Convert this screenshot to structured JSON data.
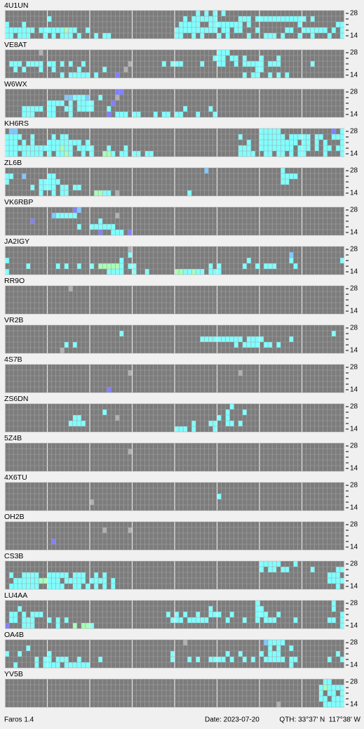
{
  "band_labels": {
    "top": 28,
    "bottom": 14
  },
  "palette": {
    "c": "#80ffff",
    "g": "#a8ffb8",
    "b": "#8080ff",
    "l": "#80c8ff",
    "k": "#b0b0b0"
  },
  "panels": [
    {
      "name": "4U1UN",
      "rows": [
        ".......... .......... .......... .......... .....c.c.c .c........ .......... ..........",
        ".......... c......... .......... .......... ..c.cccccc .....ccc.c cccccccccc c.c.......",
        "c...c..... .......... .......... .......... .ccccc..cc cccccc.c.. .........c ........cc",
        "ccccccc.cc ccccgcc..c .......... .......... cccccccccc .cc.cc...c ......cc.. cccccc.c.c",
        "cc.ccc...c .c.ccc.c.. .c.cc..... .......... cc..c.c... c.c....c.. .ccc.c...c ..c...c..c"
      ]
    },
    {
      "name": "VE8AT",
      "rows": [
        "........k. .......... .......... .......... .......... ccc....... .......... ..........",
        ".......... .......... .......... .......... .........c cc.cc.c... c...c..... ..........",
        ".ccc.cccc. cc.c.c..c. .........k .......c.c cc....c... cc..c.cccc c.ccc..... ..c.......",
        "..c.c...c. .c.....c.. ...c....k. .......... .......... .........c c......... ..........",
        ".......... ...c.ccccc .c....b... .......... .......... ......c.cc ..c.c.c... .........."
      ]
    },
    {
      "name": "W6WX",
      "rows": [
        ".......... .......... ......bb.. .......... .......... .......... .......... ..........",
        ".......... ....llcccl ..c...k... .......... .......... .......... .......... ..........",
        ".......... cccc.c.ccc c....b.... .......... .......... .......... .......... ..........",
        "....ccccc. cc..cc.ccc c...c..... .......... ..c.....c. .......... .......... ..........",
        "....ccc... cc...c.... ....b.ccc. cc...c.cc. cc...c...c .......... .......... .........."
      ]
    },
    {
      "name": "KH6RS",
      "rows": [
        ".ll....... .......... .......... .......... .......... .......... ccccc..... .......b.c",
        "cccc..c... .c.cc..... .......... .......... .......... .....c.... cccccc.ccc cc.cc..ccc",
        "ccc.c.c... cccccccc.c .......... .......... .......... .......c.. ccccccccc. cc.c.c...c",
        "cccccccccc cccgcc.ccc c...c...c. .......... .......... .....ccc.. cccccccc.c cc.c.cc.cc",
        "ccc.ccccc. c.ccgc..c. c..ggc.cc. cc.cc..... .......... .....cccc. .cc.cc.c.c c....c...c"
      ]
    },
    {
      "name": "ZL6B",
      "rows": [
        ".......... .......... .......... .......... .......l.. .......... .....c.... ..........",
        "cc..l..... cc........ .......... .......... .......... .......... .....cccc. ..........",
        "c.......cc ccc....... .......... .......... .......... .......... .....cc... ..........",
        "......c.cc cc.cc.cc.. .......... .......... .......... .......... .......... ..........",
        "........c. .c.cc..... .ggcc.k... .......... ...c...... .......... .......... .........."
      ]
    },
    {
      "name": "VK6RBP",
      "rows": [
        ".......... ......bl.. .......... .......... .......... .......... .......... ..........",
        ".......... .lccccc... ......k... .......... .......... .......... .......... ..........",
        "......b... .......... ..c....... .......... .......... .......... .......... ..........",
        ".......... .......c.. cccccc.... .......... .......... .......... .......... ..........",
        ".......... .......... ..b..ccc.b .......... .......... .......... .......... .........."
      ]
    },
    {
      "name": "JA2IGY",
      "rows": [
        ".......... .......... .........k .......... .......... .......... .......... ..........",
        ".......... .......... .........c .......... .......... .......... .......l.. ..........",
        "c......... .......... .......c.. .......... .......... .......c.. .......c.. .........c",
        ".....c.... ..c.c..c.. c.gggggc.c c......... ........c. c.....c..c .ccc....c. ..........",
        "c......... .......... ....cccc.. c..c...... ggccgcc.cc c......... .......... .........."
      ]
    },
    {
      "name": "RR9O",
      "rows": [
        ".......... .....k.... .......... .......... .......... .......... .......... ..........",
        ".......... .......... .......... .......... .......... .......... .......... ..........",
        ".......... .......... .......... .......... .......... .......... .......... ..........",
        ".......... .......... .......... .......... .......... .......... .......... ..........",
        ".......... .......... .......... .......... .......... .......... .......... .........."
      ]
    },
    {
      "name": "VR2B",
      "rows": [
        ".......... .......... .......... .......... .......... .......... .......... ..........",
        ".......... .......... .......c.. .......... .......... .......... .......... .......c..",
        ".......... .......... .......... .......... ......cccc cccccc.ccc c......c.. ..........",
        ".......... ....c.c... .......... .......... .......... ....c.cccc .cc.c..... ..........",
        ".......... ...k...... .......... .......... .......... .......... .......... .........."
      ]
    },
    {
      "name": "4S7B",
      "rows": [
        ".......... .......... .......... .......... .......... .......... .......... ..........",
        ".......... .......... .........k .......... .......... .....k.... .......... ..........",
        ".......... .......... .......... .......... .......... .......... .......... ..........",
        ".......... .......... .......... .......... .......... .......... .......... ..........",
        ".......... .......... ....b..... .......... .......... .......... .......... .........."
      ]
    },
    {
      "name": "ZS6DN",
      "rows": [
        ".......... .......... .......... .......... .......... ...c...... .......... ..........",
        ".......... .......... ...c...... .......... .......... ..c...c... .......... ..........",
        ".......... ......cc.. ......k... .......... .......... c.c....... .......... ..........",
        ".......... .....cccc. .......... .......... ....c...cc ..cc.c.... .......... ..........",
        ".......... .......... .......... .......... ccc.c....c .......... .......... .........."
      ]
    },
    {
      "name": "5Z4B",
      "rows": [
        ".......... .......... .......... .......... .......... .......... .......... ..........",
        ".......... .......... .........k .......... .......... .......... .......... ..........",
        ".......... .......... .......... .......... .......... .......... .......... ..........",
        ".......... .......... .......... .......... .......... .......... .......... ..........",
        ".......... .......... .......... .......... .......... .......... .......... .........."
      ]
    },
    {
      "name": "4X6TU",
      "rows": [
        ".......... .......... .......... .......... .......... .......... .......... ..........",
        ".......... .......... .......... .......... .......... .......... .......... ..........",
        ".......... .......... .......... .......... .......... c......... .......... ..........",
        ".......... .......... k......... .......... .......... .......... .......... ..........",
        ".......... .......... .......... .......... .......... .......... .......... .........."
      ]
    },
    {
      "name": "OH2B",
      "rows": [
        ".......... .......... .......... .......... .......... .......... .......... ..........",
        ".......... .......... ...k.....k .......... .......... .......... .......... ..........",
        ".......... .......... .......... .......... .......... .......... .......... ..........",
        ".......... .b........ .......... .......... .......... .......... .......... ..........",
        ".......... .......... .......... .......... .......... .......... .......... .........."
      ]
    },
    {
      "name": "CS3B",
      "rows": [
        ".......... .......... .......... .......... .......... .......... ccccc...c. ..........",
        ".......... .......... .......... .......... .......... .......... c.cc.cc... ..c.....cc",
        ".c..cccc.. ccccc.ccc. .c.c...... .......... .......... .......... .......... ......ccc.",
        "..ccccccgg ccc.ccccc. cccc.c.... .......... .......... .......... .......... ......cccc",
        ".ccccccc.. cccc..cc.c .c.c.c.... .......... .......... .......... .......... ........c."
      ]
    },
    {
      "name": "LU4AA",
      "rows": [
        ".......... .......... .......... .......... .......... .........c .......... .......c..",
        "...c...... .......... .......... .......... ........c. .........c c......... .......c..",
        ".cc.c.ccc. .......... .......... ........c. c.c..c..cc c..c.....c cc..c..... .........c",
        ".cc.ccc... c.c.c..... .......... .........c cc.ccccc.. ..c...c..c .ccc....c. ......cc.c",
        "b...ccc... ..c...g.gg c......... .......... .......... .......... .......... .........c"
      ]
    },
    {
      "name": "OA4B",
      "rows": [
        ".......... .......... .......... .......... ..k....... .......... .lcccc.... ..........",
        ".....c.... .......... .......... .......... .......... .......... ..c.c..c.. ..........",
        "c..c...... c......... .......... .........c .......... ..c..c.... c.ccc..... ........c.",
        ".......c.c c.ccc..c.. ..c....... .........c ...c.c..cc cc.c..c.c. .ccccc.cc. ......c..c",
        "..c....c.c ccc.cccccc .......... .......... .......... .......... .......c.. .........."
      ]
    },
    {
      "name": "YV5B",
      "rows": [
        ".......... .......... .......... .......... .......... .......... .......... .....cc...",
        ".......... .......... .......... .......... .......... .......... .......... ....cgcccc",
        ".......... .......... .......... .......... .......... .......... .......... ....c.cc.c",
        ".......... .......... .......... .......... .......... .......... .......... ....cc.ccc",
        ".......... .......... .......... .......... .......... .......... ....k..... .....ccccc"
      ]
    }
  ],
  "footer": {
    "app": "Faros 1.4",
    "date": "Date: 2023-07-20",
    "qth": "QTH: 33°37' N  117°38' W"
  }
}
